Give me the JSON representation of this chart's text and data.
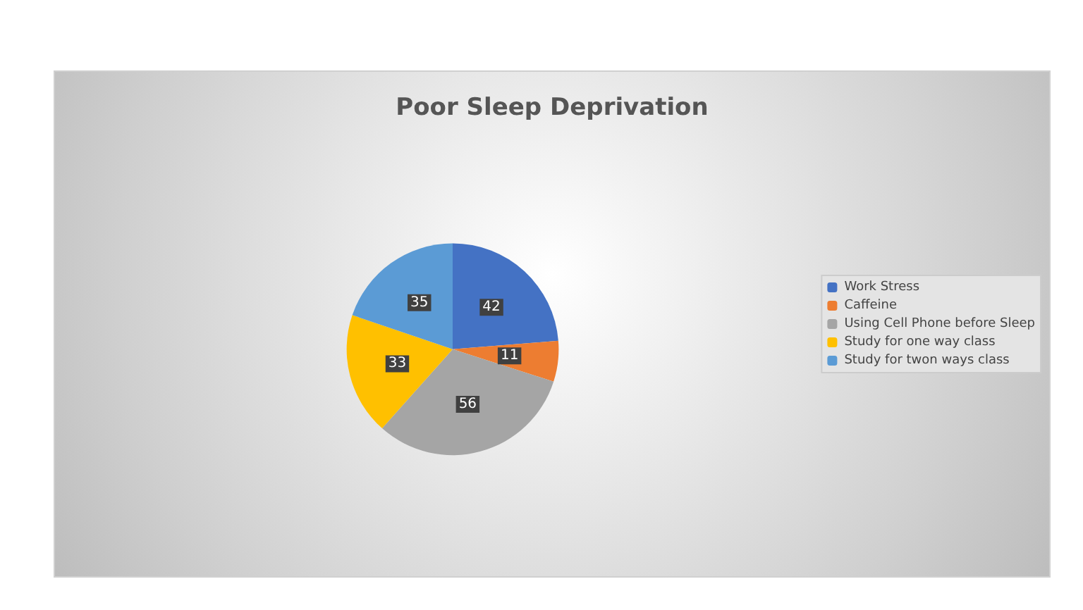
{
  "chart_data": {
    "type": "pie",
    "title": "Poor Sleep Deprivation",
    "categories": [
      "Work Stress",
      "Caffeine",
      "Using Cell Phone before Sleep",
      "Study for one way class",
      "Study for twon ways class"
    ],
    "values": [
      42,
      11,
      56,
      33,
      35
    ],
    "colors": [
      "#4472c4",
      "#ed7d31",
      "#a5a5a5",
      "#ffc000",
      "#5b9bd5"
    ],
    "data_labels": true,
    "legend": "right"
  }
}
